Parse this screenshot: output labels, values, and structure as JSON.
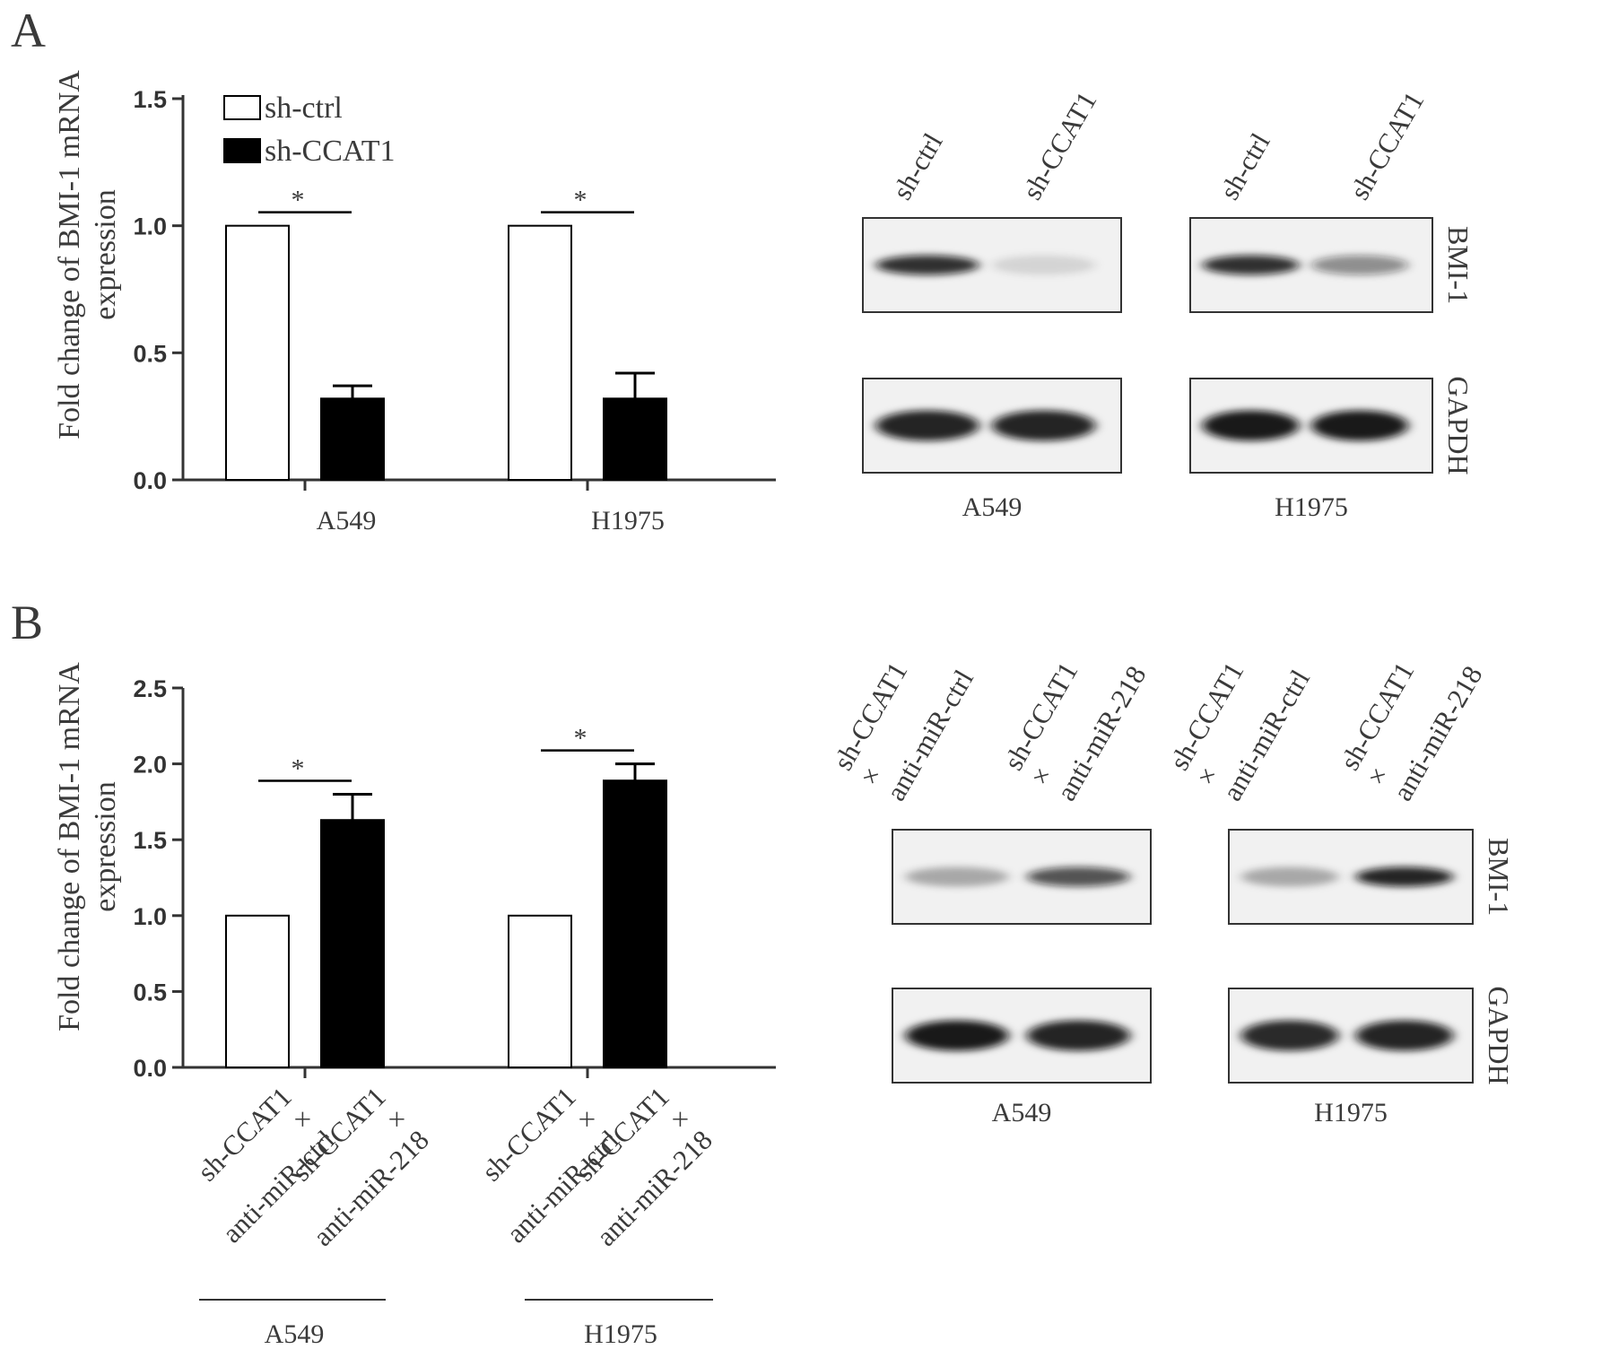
{
  "chart_data": [
    {
      "panel": "A",
      "type": "bar",
      "ylabel": "Fold change of BMI-1 mRNA expression",
      "ylim": [
        0,
        1.5
      ],
      "yticks": [
        "0.0",
        "0.5",
        "1.0",
        "1.5"
      ],
      "groups": [
        "A549",
        "H1975"
      ],
      "legend": [
        "sh-ctrl",
        "sh-CCAT1"
      ],
      "legend_position": "top-left",
      "series": [
        {
          "name": "sh-ctrl",
          "values": [
            1.0,
            1.0
          ],
          "errors": [
            0,
            0
          ],
          "fill": "#ffffff"
        },
        {
          "name": "sh-CCAT1",
          "values": [
            0.32,
            0.32
          ],
          "errors": [
            0.05,
            0.1
          ],
          "fill": "#000000"
        }
      ],
      "significance": [
        "*",
        "*"
      ]
    },
    {
      "panel": "B",
      "type": "bar",
      "ylabel": "Fold change of BMI-1 mRNA expression",
      "ylim": [
        0,
        2.5
      ],
      "yticks": [
        "0.0",
        "0.5",
        "1.0",
        "1.5",
        "2.0",
        "2.5"
      ],
      "groups": [
        "A549",
        "H1975"
      ],
      "bar_labels": [
        [
          "sh-CCAT1",
          "×",
          "anti-miR-ctrl"
        ],
        [
          "sh-CCAT1",
          "×",
          "anti-miR-218"
        ]
      ],
      "series": [
        {
          "name": "sh-CCAT1 × anti-miR-ctrl",
          "values": [
            1.0,
            1.0
          ],
          "errors": [
            0,
            0
          ],
          "fill": "#ffffff"
        },
        {
          "name": "sh-CCAT1 × anti-miR-218",
          "values": [
            1.63,
            1.89
          ],
          "errors": [
            0.17,
            0.11
          ],
          "fill": "#000000"
        }
      ],
      "significance": [
        "*",
        "*"
      ]
    }
  ],
  "panels": {
    "a": {
      "letter": "A"
    },
    "b": {
      "letter": "B"
    }
  },
  "blots": {
    "a": {
      "lanes": [
        "sh-ctrl",
        "sh-CCAT1"
      ],
      "cells": [
        "A549",
        "H1975"
      ],
      "proteins": [
        "BMI-1",
        "GAPDH"
      ],
      "bmi1_intensity": [
        [
          0.85,
          0.12
        ],
        [
          0.85,
          0.45
        ]
      ],
      "gapdh_intensity": [
        [
          0.9,
          0.9
        ],
        [
          0.95,
          0.95
        ]
      ]
    },
    "b": {
      "lanes": [
        [
          "sh-CCAT1",
          "×",
          "anti-miR-ctrl"
        ],
        [
          "sh-CCAT1",
          "×",
          "anti-miR-218"
        ]
      ],
      "cells": [
        "A549",
        "H1975"
      ],
      "proteins": [
        "BMI-1",
        "GAPDH"
      ],
      "bmi1_intensity": [
        [
          0.3,
          0.7
        ],
        [
          0.3,
          0.9
        ]
      ],
      "gapdh_intensity": [
        [
          0.95,
          0.9
        ],
        [
          0.88,
          0.9
        ]
      ]
    }
  }
}
